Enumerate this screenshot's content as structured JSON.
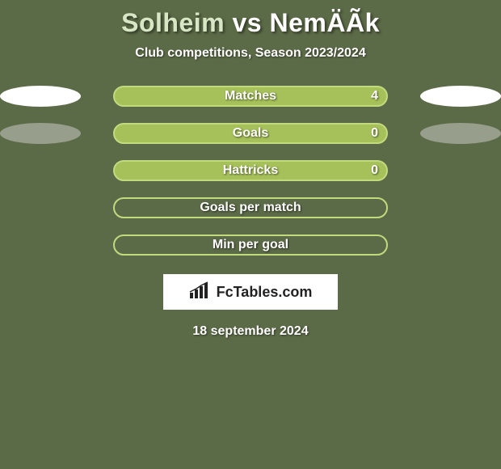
{
  "header": {
    "player1": "Solheim",
    "vs": "vs",
    "player2": "NemÄÃk",
    "subtitle": "Club competitions, Season 2023/2024"
  },
  "rows": [
    {
      "label": "Matches",
      "value_right": "4",
      "bar_style": "filled",
      "left_ellipse": "white",
      "right_ellipse": "white"
    },
    {
      "label": "Goals",
      "value_right": "0",
      "bar_style": "filled",
      "left_ellipse": "grey",
      "right_ellipse": "grey"
    },
    {
      "label": "Hattricks",
      "value_right": "0",
      "bar_style": "filled",
      "left_ellipse": "none",
      "right_ellipse": "none"
    },
    {
      "label": "Goals per match",
      "value_right": "",
      "bar_style": "outline",
      "left_ellipse": "none",
      "right_ellipse": "none"
    },
    {
      "label": "Min per goal",
      "value_right": "",
      "bar_style": "outline",
      "left_ellipse": "none",
      "right_ellipse": "none"
    }
  ],
  "logo": {
    "text": "FcTables.com"
  },
  "date": "18 september 2024",
  "colors": {
    "background": "#5c6b47",
    "bar_fill": "#a6c15a",
    "bar_border": "#c2d97e",
    "ellipse_grey": "#989e8c",
    "text": "#ffffff"
  }
}
